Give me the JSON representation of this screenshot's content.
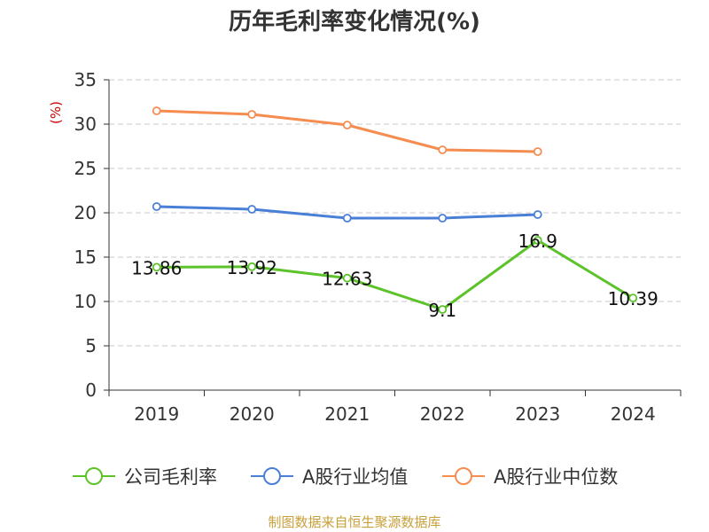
{
  "title": "历年毛利率变化情况(%)",
  "source_note": "制图数据来自恒生聚源数据库",
  "chart_data": {
    "type": "line",
    "title": "历年毛利率变化情况(%)",
    "ylabel": "(%)",
    "xlabel": "",
    "categories": [
      "2019",
      "2020",
      "2021",
      "2022",
      "2023",
      "2024"
    ],
    "ylim": [
      0,
      35
    ],
    "yticks": [
      0,
      5,
      10,
      15,
      20,
      25,
      30,
      35
    ],
    "grid": true,
    "legend_position": "bottom",
    "series": [
      {
        "name": "公司毛利率",
        "color": "#5cc32a",
        "values": [
          13.86,
          13.92,
          12.63,
          9.1,
          16.9,
          10.39
        ],
        "labels": [
          "13.86",
          "13.92",
          "12.63",
          "9.1",
          "16.9",
          "10.39"
        ]
      },
      {
        "name": "A股行业均值",
        "color": "#4a7fd8",
        "values": [
          20.7,
          20.4,
          19.4,
          19.4,
          19.8,
          null
        ]
      },
      {
        "name": "A股行业中位数",
        "color": "#f58c50",
        "values": [
          31.5,
          31.1,
          29.9,
          27.1,
          26.9,
          null
        ]
      }
    ]
  }
}
